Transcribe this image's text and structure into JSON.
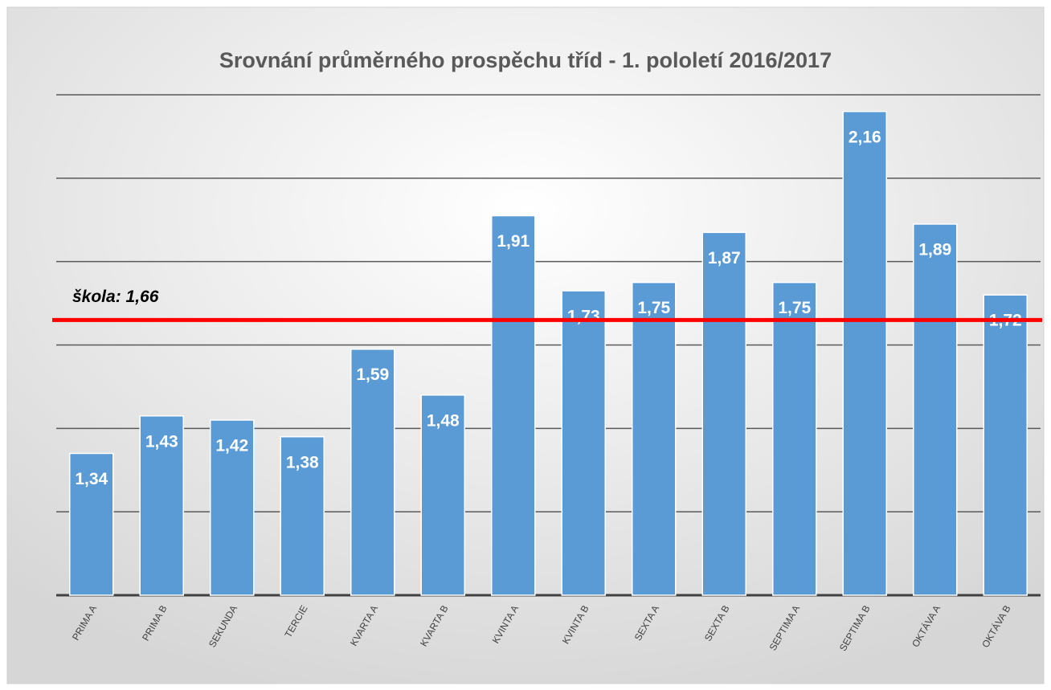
{
  "chart_data": {
    "type": "bar",
    "title": "Srovnání průměrného prospěchu tříd - 1. pololetí 2016/2017",
    "categories": [
      "PRIMA A",
      "PRIMA B",
      "SEKUNDA",
      "TERCIE",
      "KVARTA A",
      "KVARTA B",
      "KVINTA A",
      "KVINTA B",
      "SEXTA A",
      "SEXTA B",
      "SEPTIMA A",
      "SEPTIMA B",
      "OKTÁVA A",
      "OKTÁVA B"
    ],
    "values": [
      1.34,
      1.43,
      1.42,
      1.38,
      1.59,
      1.48,
      1.91,
      1.73,
      1.75,
      1.87,
      1.75,
      2.16,
      1.89,
      1.72
    ],
    "value_labels": [
      "1,34",
      "1,43",
      "1,42",
      "1,38",
      "1,59",
      "1,48",
      "1,91",
      "1,73",
      "1,75",
      "1,87",
      "1,75",
      "2,16",
      "1,89",
      "1,72"
    ],
    "color": "#5b9bd5",
    "ylim": [
      1.0,
      2.2
    ],
    "yticks": [
      1.0,
      1.2,
      1.4,
      1.6,
      1.8,
      2.0,
      2.2
    ],
    "grid": true,
    "reference_line": {
      "value": 1.66,
      "label": "škola: 1,66",
      "color": "#ff0000"
    }
  }
}
